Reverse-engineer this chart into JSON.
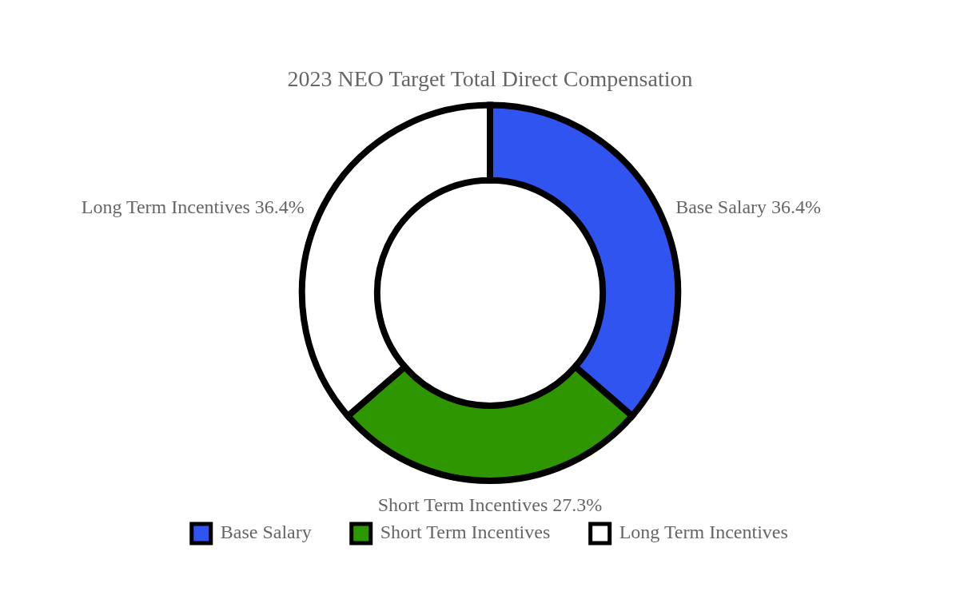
{
  "chart_data": {
    "type": "donut",
    "title": "2023 NEO Target Total Direct Compensation",
    "categories": [
      "Base Salary",
      "Short Term Incentives",
      "Long Term Incentives"
    ],
    "values": [
      36.4,
      27.3,
      36.4
    ],
    "value_labels": [
      "36.4%",
      "27.3%",
      "36.4%"
    ],
    "colors": [
      "#2f54f0",
      "#2e9600",
      "#ffffff"
    ],
    "legend": "bottom"
  }
}
